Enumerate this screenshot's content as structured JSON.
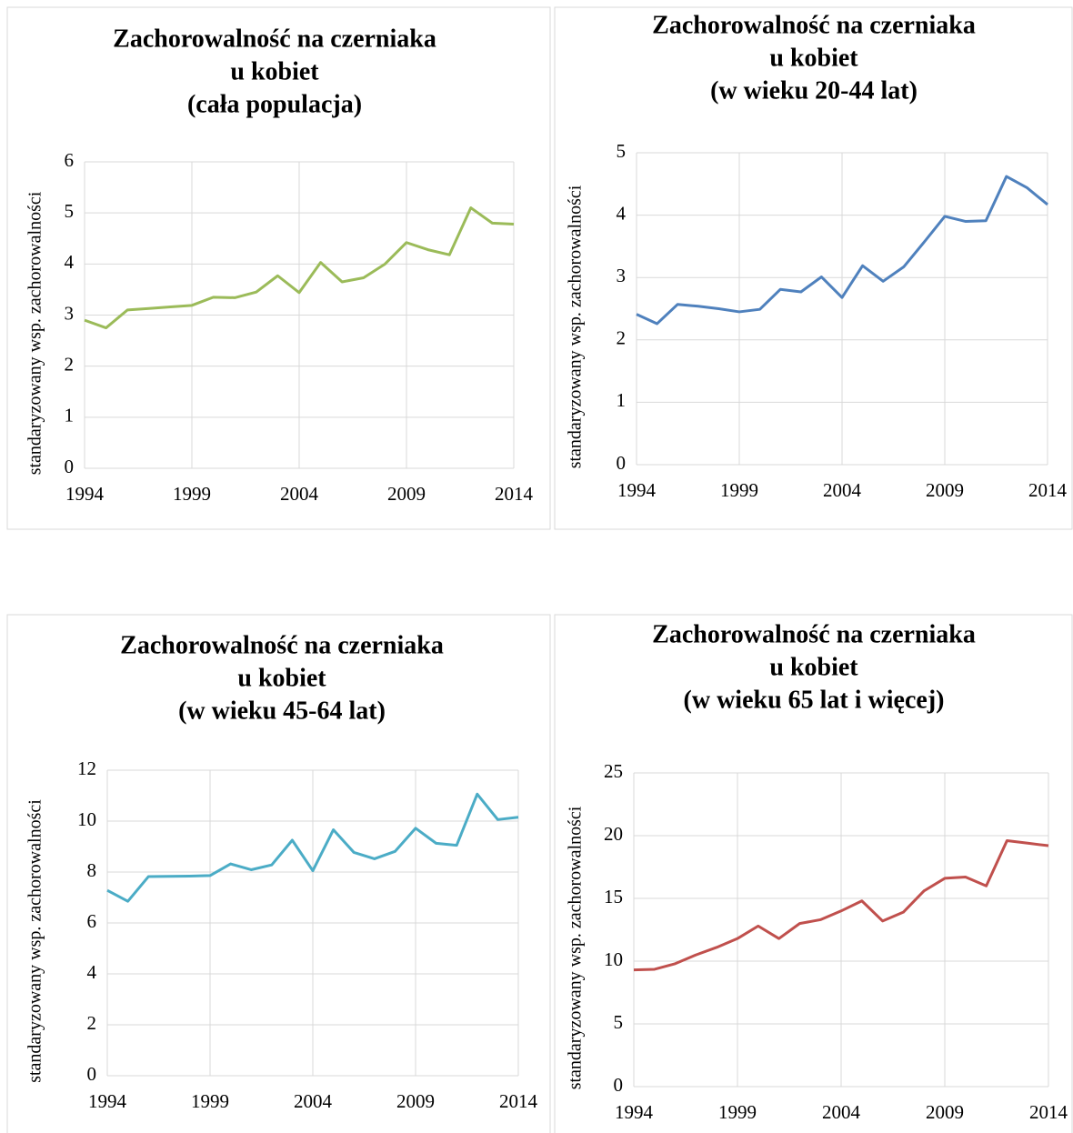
{
  "chart_data": [
    {
      "type": "line",
      "title": [
        "Zachorowalność na czerniaka",
        "u kobiet",
        "(cała populacja)"
      ],
      "y_label": "standaryzowany wsp. zachorowalności",
      "x": [
        1994,
        1995,
        1996,
        1997,
        1998,
        1999,
        2000,
        2001,
        2002,
        2003,
        2004,
        2005,
        2006,
        2007,
        2008,
        2009,
        2010,
        2011,
        2012,
        2013,
        2014
      ],
      "series": [
        {
          "color": "#9bbb59",
          "values": [
            2.9,
            2.75,
            3.1,
            3.13,
            3.16,
            3.19,
            3.35,
            3.34,
            3.45,
            3.77,
            3.44,
            4.03,
            3.65,
            3.73,
            4.0,
            4.42,
            4.28,
            4.18,
            5.1,
            4.8,
            4.78
          ]
        }
      ],
      "xlim": [
        1994,
        2014
      ],
      "xticks": [
        1994,
        1999,
        2004,
        2009,
        2014
      ],
      "ylim": [
        0,
        6
      ],
      "yticks": [
        0,
        1,
        2,
        3,
        4,
        5,
        6
      ],
      "grid": true
    },
    {
      "type": "line",
      "title": [
        "Zachorowalność na czerniaka",
        "u kobiet",
        "(w wieku 20-44 lat)"
      ],
      "y_label": "standaryzowany wsp. zachorowalności",
      "x": [
        1994,
        1995,
        1996,
        1997,
        1998,
        1999,
        2000,
        2001,
        2002,
        2003,
        2004,
        2005,
        2006,
        2007,
        2008,
        2009,
        2010,
        2011,
        2012,
        2013,
        2014
      ],
      "series": [
        {
          "color": "#4f81bd",
          "values": [
            2.41,
            2.26,
            2.57,
            2.54,
            2.5,
            2.45,
            2.49,
            2.81,
            2.77,
            3.01,
            2.68,
            3.19,
            2.94,
            3.17,
            3.57,
            3.98,
            3.9,
            3.91,
            4.62,
            4.44,
            4.17
          ]
        }
      ],
      "xlim": [
        1994,
        2014
      ],
      "xticks": [
        1994,
        1999,
        2004,
        2009,
        2014
      ],
      "ylim": [
        0,
        5
      ],
      "yticks": [
        0,
        1,
        2,
        3,
        4,
        5
      ],
      "grid": true
    },
    {
      "type": "line",
      "title": [
        "Zachorowalność na czerniaka",
        "u kobiet",
        "(w wieku 45-64 lat)"
      ],
      "y_label": "standaryzowany wsp. zachorowalności",
      "x": [
        1994,
        1995,
        1996,
        1997,
        1998,
        1999,
        2000,
        2001,
        2002,
        2003,
        2004,
        2005,
        2006,
        2007,
        2008,
        2009,
        2010,
        2011,
        2012,
        2013,
        2014
      ],
      "series": [
        {
          "color": "#4bacc6",
          "values": [
            7.28,
            6.85,
            7.82,
            7.83,
            7.84,
            7.86,
            8.32,
            8.09,
            8.28,
            9.25,
            8.05,
            9.66,
            8.77,
            8.52,
            8.81,
            9.72,
            9.13,
            9.05,
            11.06,
            10.06,
            10.15
          ]
        }
      ],
      "xlim": [
        1994,
        2014
      ],
      "xticks": [
        1994,
        1999,
        2004,
        2009,
        2014
      ],
      "ylim": [
        0,
        12
      ],
      "yticks": [
        0,
        2,
        4,
        6,
        8,
        10,
        12
      ],
      "grid": true
    },
    {
      "type": "line",
      "title": [
        "Zachorowalność na czerniaka",
        "u kobiet",
        "(w wieku 65 lat i więcej)"
      ],
      "y_label": "standaryzowany wsp. zachorowalności",
      "x": [
        1994,
        1995,
        1996,
        1997,
        1998,
        1999,
        2000,
        2001,
        2002,
        2003,
        2004,
        2005,
        2006,
        2007,
        2008,
        2009,
        2010,
        2011,
        2012,
        2013,
        2014
      ],
      "series": [
        {
          "color": "#c0504d",
          "values": [
            9.3,
            9.35,
            9.8,
            10.5,
            11.1,
            11.8,
            12.8,
            11.8,
            13.0,
            13.3,
            14.0,
            14.8,
            13.2,
            13.9,
            15.6,
            16.6,
            16.7,
            16.0,
            19.6,
            19.4,
            19.2
          ]
        }
      ],
      "xlim": [
        1994,
        2014
      ],
      "xticks": [
        1994,
        1999,
        2004,
        2009,
        2014
      ],
      "ylim": [
        0,
        25
      ],
      "yticks": [
        0,
        5,
        10,
        15,
        20,
        25
      ],
      "grid": true
    }
  ]
}
